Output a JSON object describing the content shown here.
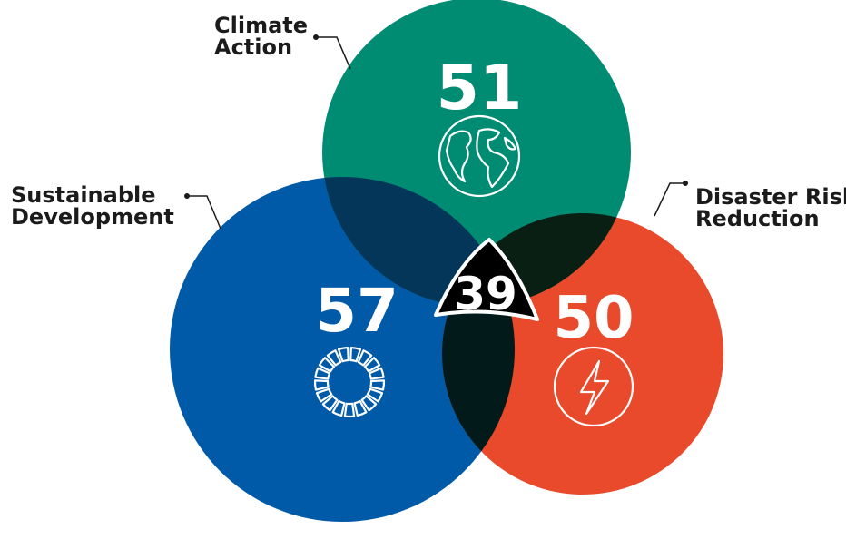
{
  "sets": [
    {
      "id": "climate",
      "label_lines": [
        "Climate",
        "Action"
      ],
      "count": "51",
      "icon": "globe-icon",
      "color": "#008b73"
    },
    {
      "id": "sustainable",
      "label_lines": [
        "Sustainable",
        "Development"
      ],
      "count": "57",
      "icon": "sdg-wheel-icon",
      "color": "#005aa8"
    },
    {
      "id": "disaster",
      "label_lines": [
        "Disaster Risk",
        "Reduction"
      ],
      "count": "50",
      "icon": "lightning-icon",
      "color": "#e84a2b"
    }
  ],
  "intersection": {
    "count": "39"
  },
  "overlap_colors": {
    "climate_sustainable": "#04365a",
    "climate_disaster": "#0a1f14",
    "sustainable_disaster": "#031a1a",
    "all": "#000000"
  }
}
